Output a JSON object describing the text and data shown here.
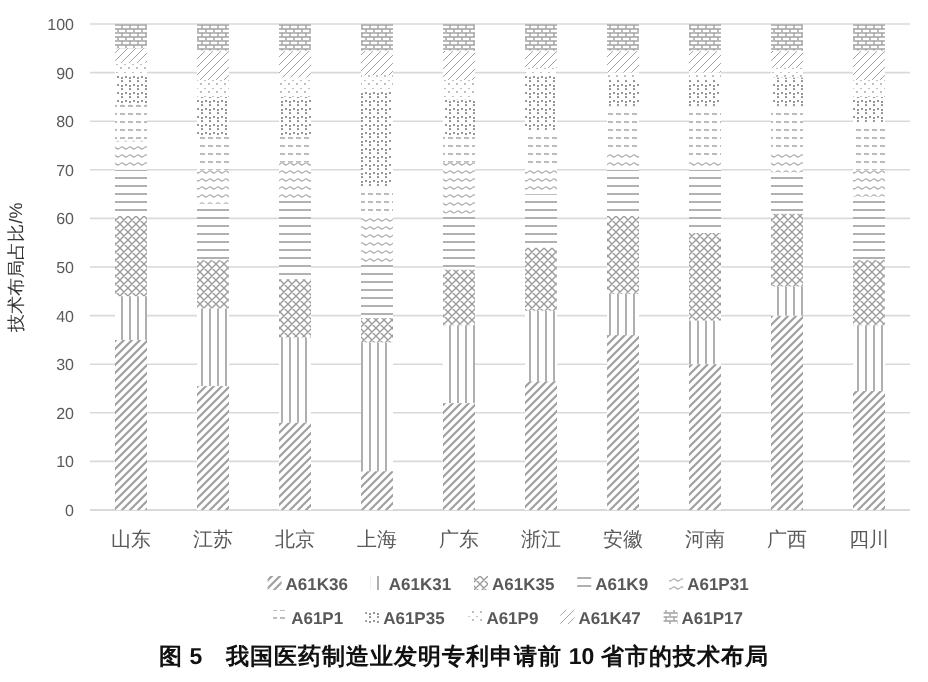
{
  "chart_data": {
    "type": "bar",
    "stacked": true,
    "title": "图 5　我国医药制造业发明专利申请前 10 省市的技术布局",
    "ylabel": "技术布局占比/%",
    "categories": [
      "山东",
      "江苏",
      "北京",
      "上海",
      "广东",
      "浙江",
      "安徽",
      "河南",
      "广西",
      "四川"
    ],
    "series": [
      {
        "name": "A61K36",
        "color": "#a0a0a0",
        "values": [
          35,
          25.5,
          18,
          8,
          22,
          26.5,
          36,
          30,
          40,
          24.5
        ]
      },
      {
        "name": "A61K31",
        "color": "#a6a6a6",
        "values": [
          9,
          16,
          17.5,
          26.5,
          16,
          14.5,
          8.5,
          9,
          6,
          13.5
        ]
      },
      {
        "name": "A61K35",
        "color": "#9c9c9c",
        "values": [
          16.5,
          10,
          12,
          5,
          11.5,
          13,
          16,
          18,
          15,
          13.5
        ]
      },
      {
        "name": "A61K9",
        "color": "#a8a8a8",
        "values": [
          9.5,
          11.5,
          16.5,
          11.5,
          11.5,
          11,
          9.5,
          13,
          8.5,
          13
        ]
      },
      {
        "name": "A61P31",
        "color": "#b0b0b0",
        "values": [
          6,
          7,
          7.5,
          10,
          10.5,
          5.5,
          3.5,
          2.5,
          4.5,
          5.5
        ]
      },
      {
        "name": "A61P1",
        "color": "#b4b4b4",
        "values": [
          7.5,
          7,
          5.5,
          5.5,
          5.5,
          7.5,
          9.5,
          10.5,
          9,
          9.5
        ]
      },
      {
        "name": "A61P35",
        "color": "#989898",
        "values": [
          6,
          8,
          8,
          20,
          7.5,
          11.5,
          5.5,
          5.5,
          6,
          5.5
        ]
      },
      {
        "name": "A61P9",
        "color": "#acacac",
        "values": [
          2.5,
          3.5,
          4,
          3,
          4,
          1.5,
          1.5,
          1.5,
          2,
          3.5
        ]
      },
      {
        "name": "A61K47",
        "color": "#a4a4a4",
        "values": [
          3,
          6,
          5.5,
          5,
          6,
          3.5,
          4.5,
          4.5,
          3.5,
          6
        ]
      },
      {
        "name": "A61P17",
        "color": "#a2a2a2",
        "values": [
          5,
          5.5,
          5.5,
          5.5,
          5.5,
          5.5,
          5.5,
          5.5,
          5.5,
          5.5
        ]
      }
    ],
    "ylim": [
      0,
      100
    ],
    "yticks": [
      0,
      10,
      20,
      30,
      40,
      50,
      60,
      70,
      80,
      90,
      100
    ],
    "grid": "y",
    "legend": "bottom"
  }
}
